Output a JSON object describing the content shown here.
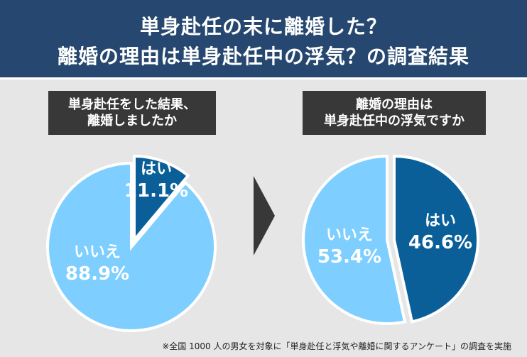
{
  "title": {
    "line1": "単身赴任の末に離婚した？",
    "line2": "離婚の理由は単身赴任中の浮気？の調査結果"
  },
  "colors": {
    "header_bg": "#26476f",
    "dark_blue": "#0a5f99",
    "light_blue": "#7ecfff",
    "label_bg": "#383838",
    "panel_bg": "#e6e6e6"
  },
  "chart_data": [
    {
      "type": "pie",
      "title_lines": [
        "単身赴任をした結果、",
        "離婚しましたか"
      ],
      "slices": [
        {
          "label": "はい",
          "value": 11.1,
          "display": "11.1%",
          "color": "#0a5f99",
          "exploded": true
        },
        {
          "label": "いいえ",
          "value": 88.9,
          "display": "88.9%",
          "color": "#7ecfff",
          "exploded": false
        }
      ]
    },
    {
      "type": "pie",
      "title_lines": [
        "離婚の理由は",
        "単身赴任中の浮気ですか"
      ],
      "slices": [
        {
          "label": "はい",
          "value": 46.6,
          "display": "46.6%",
          "color": "#0a5f99",
          "exploded": true
        },
        {
          "label": "いいえ",
          "value": 53.4,
          "display": "53.4%",
          "color": "#7ecfff",
          "exploded": false
        }
      ]
    }
  ],
  "footnote": "※全国 1000 人の男女を対象に「単身赴任と浮気や離婚に関するアンケート」の調査を実施"
}
